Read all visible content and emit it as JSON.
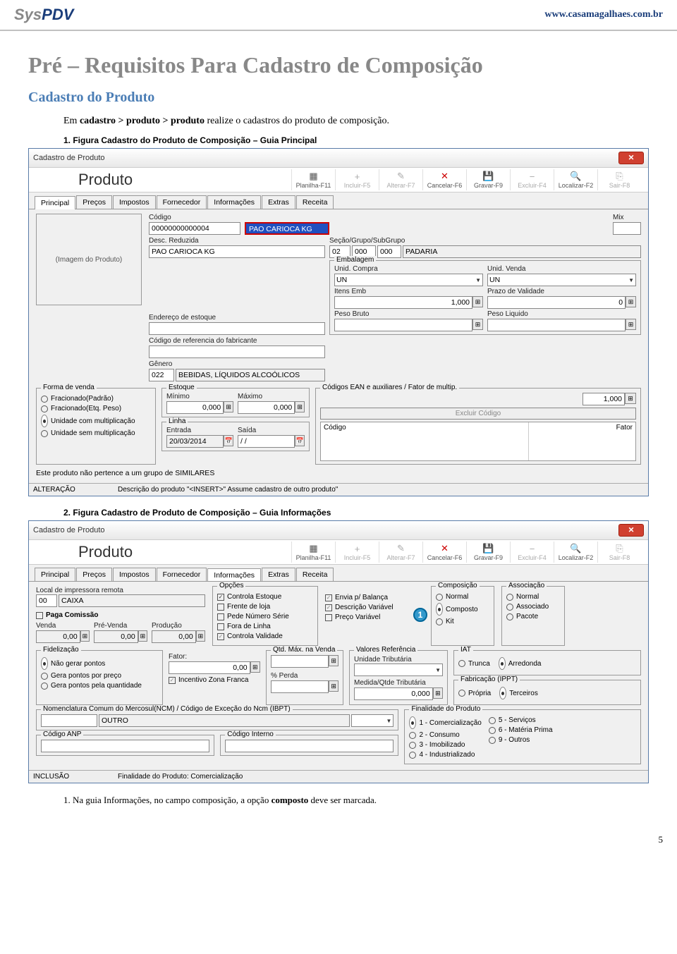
{
  "header": {
    "logo_sys": "Sys",
    "logo_pdv": "PDV",
    "url": "www.casamagalhaes.com.br"
  },
  "title": "Pré – Requisitos Para Cadastro de Composição",
  "subtitle": "Cadastro do Produto",
  "intro_pre": "Em ",
  "intro_bold": "cadastro > produto > produto",
  "intro_post": " realize o cadastros do produto de composição.",
  "fig1_label": "1.  Figura Cadastro do Produto de Composição – Guia Principal",
  "fig2_label": "2.  Figura Cadastro de Produto de Composição – Guia Informações",
  "footnote_pre": "1.   Na guia Informações, no campo composição, a opção ",
  "footnote_bold": "composto",
  "footnote_post": " deve ser marcada.",
  "pagenum": "5",
  "win": {
    "title": "Cadastro de Produto",
    "prod": "Produto",
    "toolbar": [
      {
        "lbl": "Planilha-F11",
        "ic": "▦",
        "cls": ""
      },
      {
        "lbl": "Incluir-F5",
        "ic": "+",
        "cls": "dis"
      },
      {
        "lbl": "Alterar-F7",
        "ic": "✎",
        "cls": "dis"
      },
      {
        "lbl": "Cancelar-F6",
        "ic": "✕",
        "cls": "red"
      },
      {
        "lbl": "Gravar-F9",
        "ic": "💾",
        "cls": "blue"
      },
      {
        "lbl": "Excluir-F4",
        "ic": "−",
        "cls": "dis"
      },
      {
        "lbl": "Localizar-F2",
        "ic": "🔍",
        "cls": ""
      },
      {
        "lbl": "Sair-F8",
        "ic": "⎘",
        "cls": "dis"
      }
    ],
    "tabs1": [
      "Principal",
      "Preços",
      "Impostos",
      "Fornecedor",
      "Informações",
      "Extras",
      "Receita"
    ],
    "tabs2": [
      "Principal",
      "Preços",
      "Impostos",
      "Fornecedor",
      "Informações",
      "Extras",
      "Receita"
    ]
  },
  "p1": {
    "codigo_lbl": "Código",
    "codigo": "00000000000004",
    "nome_hl": "PAO CARIOCA KG",
    "mix_lbl": "Mix",
    "desc_red_lbl": "Desc. Reduzida",
    "desc_red": "PAO CARIOCA KG",
    "secao_lbl": "Seção/Grupo/SubGrupo",
    "secao": "02",
    "grupo": "000",
    "subg": "000",
    "secao_nome": "PADARIA",
    "img_ph": "(Imagem do Produto)",
    "end_est_lbl": "Endereço de estoque",
    "emb_leg": "Embalagem",
    "unid_compra_lbl": "Unid. Compra",
    "unid_compra": "UN",
    "unid_venda_lbl": "Unid. Venda",
    "unid_venda": "UN",
    "cod_ref_lbl": "Código de referencia do fabricante",
    "itens_emb_lbl": "Itens Emb",
    "itens_emb": "1,000",
    "prazo_lbl": "Prazo de Validade",
    "prazo": "0",
    "genero_lbl": "Gênero",
    "genero_cod": "022",
    "genero_nome": "BEBIDAS, LÍQUIDOS ALCOÓLICOS",
    "peso_bruto_lbl": "Peso Bruto",
    "peso_liq_lbl": "Peso Liquido",
    "forma_leg": "Forma de venda",
    "forma_opts": [
      "Fracionado(Padrão)",
      "Fracionado(Etq. Peso)",
      "Unidade com multiplicação",
      "Unidade sem multiplicação"
    ],
    "forma_sel": 2,
    "estoque_leg": "Estoque",
    "min_lbl": "Mínimo",
    "min": "0,000",
    "max_lbl": "Máximo",
    "max": "0,000",
    "ean_leg": "Códigos EAN e auxiliares / Fator de multip.",
    "ean_val": "1,000",
    "excl_btn": "Excluir Código",
    "ean_c1": "Código",
    "ean_c2": "Fator",
    "linha_leg": "Linha",
    "entrada_lbl": "Entrada",
    "entrada": "20/03/2014",
    "saida_lbl": "Saída",
    "saida": "/ /",
    "sim_msg": "Este produto não pertence a um grupo de SIMILARES",
    "status1": "ALTERAÇÃO",
    "status2": "Descrição do produto \"<INSERT>\" Assume cadastro de outro produto\""
  },
  "p2": {
    "local_lbl": "Local de impressora remota",
    "local_cod": "00",
    "local_nome": "CAIXA",
    "paga_lbl": "Paga Comissão",
    "venda_lbl": "Venda",
    "venda": "0,00",
    "pre_lbl": "Pré-Venda",
    "pre": "0,00",
    "prod_lbl": "Produção",
    "prod": "0,00",
    "opc_leg": "Opções",
    "opc": [
      {
        "l": "Controla Estoque",
        "c": true
      },
      {
        "l": "Frente de loja",
        "c": false
      },
      {
        "l": "Pede Número Série",
        "c": false
      },
      {
        "l": "Fora de Linha",
        "c": false
      },
      {
        "l": "Controla Validade",
        "c": true,
        "g": true
      }
    ],
    "opc2": [
      {
        "l": "Envia p/ Balança",
        "c": true,
        "g": true
      },
      {
        "l": "Descrição Variável",
        "c": true,
        "g": true
      },
      {
        "l": "Preço Variável",
        "c": false
      }
    ],
    "comp_leg": "Composição",
    "comp_opts": [
      "Normal",
      "Composto",
      "Kit"
    ],
    "comp_sel": 1,
    "assoc_leg": "Associação",
    "assoc_opts": [
      "Normal",
      "Associado",
      "Pacote"
    ],
    "assoc_sel": -1,
    "fid_leg": "Fidelização",
    "fid_opts": [
      "Não gerar pontos",
      "Gera pontos por preço",
      "Gera pontos pela quantidade"
    ],
    "fid_sel": 0,
    "fator_lbl": "Fator:",
    "fator": "0,00",
    "inc_lbl": "Incentivo Zona Franca",
    "qtd_leg": "Qtd. Máx. na Venda",
    "valref_leg": "Valores Referência",
    "unid_trib_lbl": "Unidade Tributária",
    "perda_lbl": "% Perda",
    "med_lbl": "Medida/Qtde Tributária",
    "med": "0,000",
    "iat_leg": "IAT",
    "iat_opts": [
      "Trunca",
      "Arredonda"
    ],
    "iat_sel": 1,
    "fab_leg": "Fabricação (IPPT)",
    "fab_opts": [
      "Própria",
      "Terceiros"
    ],
    "fab_sel": 1,
    "ncm_leg": "Nomenclatura Comum do Mercosul(NCM) / Código de Exceção do Ncm (IBPT)",
    "ncm_val": "OUTRO",
    "anp_leg": "Código ANP",
    "cint_leg": "Código Interno",
    "fin_leg": "Finalidade do Produto",
    "fin_opts_l": [
      "1 - Comercialização",
      "2 - Consumo",
      "3 - Imobilizado",
      "4 - Industrializado"
    ],
    "fin_opts_r": [
      "5 - Serviços",
      "6 - Matéria Prima",
      "9 - Outros"
    ],
    "fin_sel": 0,
    "status1": "INCLUSÃO",
    "status2": "Finalidade do Produto: Comercialização"
  }
}
